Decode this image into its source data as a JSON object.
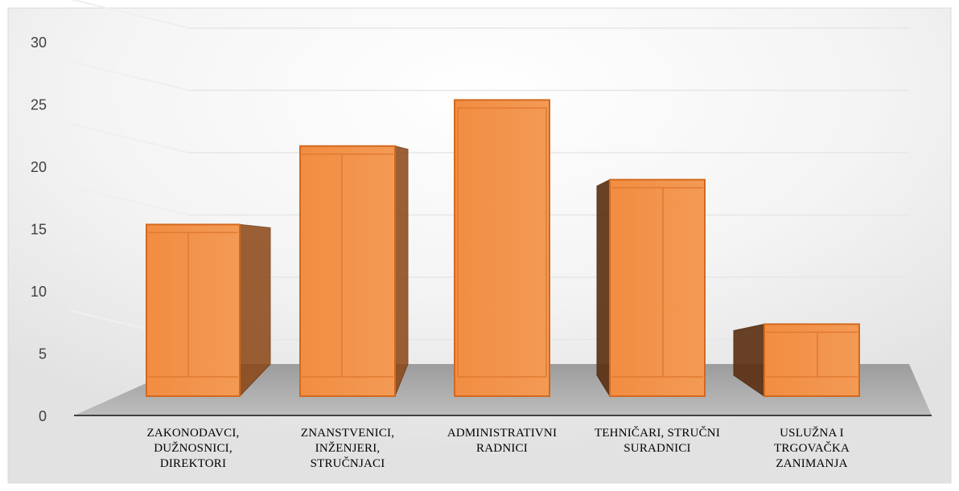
{
  "chart_data": {
    "type": "bar",
    "title": "",
    "xlabel": "",
    "ylabel": "",
    "categories": [
      "ZAKONODAVCI, DUŽNOSNICI, DIREKTORI",
      "ZNANSTVENICI, INŽENJERI, STRUČNJACI",
      "ADMINISTRATIVNI RADNICI",
      "TEHNIČARI, STRUČNI SURADNICI",
      "USLUŽNA I TRGOVAČKA ZANIMANJA"
    ],
    "category_lines": [
      [
        "ZAKONODAVCI,",
        "DUŽNOSNICI,",
        "DIREKTORI"
      ],
      [
        "ZNANSTVENICI,",
        "INŽENJERI,",
        "STRUČNJACI"
      ],
      [
        "ADMINISTRATIVNI",
        "RADNICI"
      ],
      [
        "TEHNIČARI, STRUČNI",
        "SURADNICI"
      ],
      [
        "USLUŽNA I",
        "TRGOVAČKA",
        "ZANIMANJA"
      ]
    ],
    "values": [
      15.2,
      21.5,
      25.2,
      18.8,
      7.2
    ],
    "ylim": [
      0,
      30
    ],
    "yticks": [
      "0",
      "5",
      "10",
      "15",
      "20",
      "25",
      "30"
    ],
    "grid": true,
    "legend": "none",
    "colors": {
      "bar_front": "#F08A3C",
      "bar_edge": "#D2691E",
      "bar_side": "#8B4513",
      "floor": "#B0B0B0",
      "axis": "#404040",
      "grid": "#E6E6E6"
    }
  }
}
